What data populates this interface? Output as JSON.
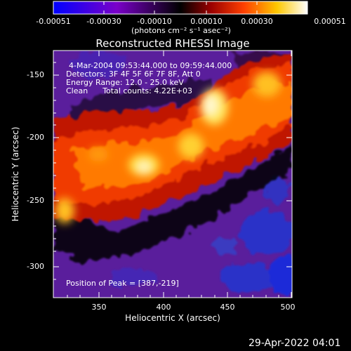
{
  "colorbar": {
    "ticks": [
      "-0.00051",
      "-0.00030",
      "-0.00010",
      "0.00010",
      "0.00030",
      "0.00051"
    ],
    "units_label": "(photons cm⁻² s⁻¹ asec⁻²)",
    "colors": [
      "#0000ff",
      "#6a00d0",
      "#000000",
      "#8a0000",
      "#ff4a00",
      "#ffd000",
      "#ffffff"
    ]
  },
  "plot": {
    "title": "Reconstructed RHESSI Image",
    "info_lines": [
      "4-Mar-2004 09:53:44.000 to 09:59:44.000",
      "Detectors: 3F 4F 5F 6F 7F 8F, Att 0",
      "Energy Range: 12.0 - 25.0 keV",
      "Clean      Total counts: 4.22E+03"
    ],
    "peak_label": "Position of Peak = [387,-219]",
    "xlabel": "Heliocentric X (arcsec)",
    "ylabel": "Heliocentric Y (arcsec)",
    "x_ticks": [
      "350",
      "400",
      "450",
      "500"
    ],
    "y_ticks": [
      "-150",
      "-200",
      "-250",
      "-300"
    ]
  },
  "footer": {
    "timestamp": "29-Apr-2022 04:01"
  }
}
